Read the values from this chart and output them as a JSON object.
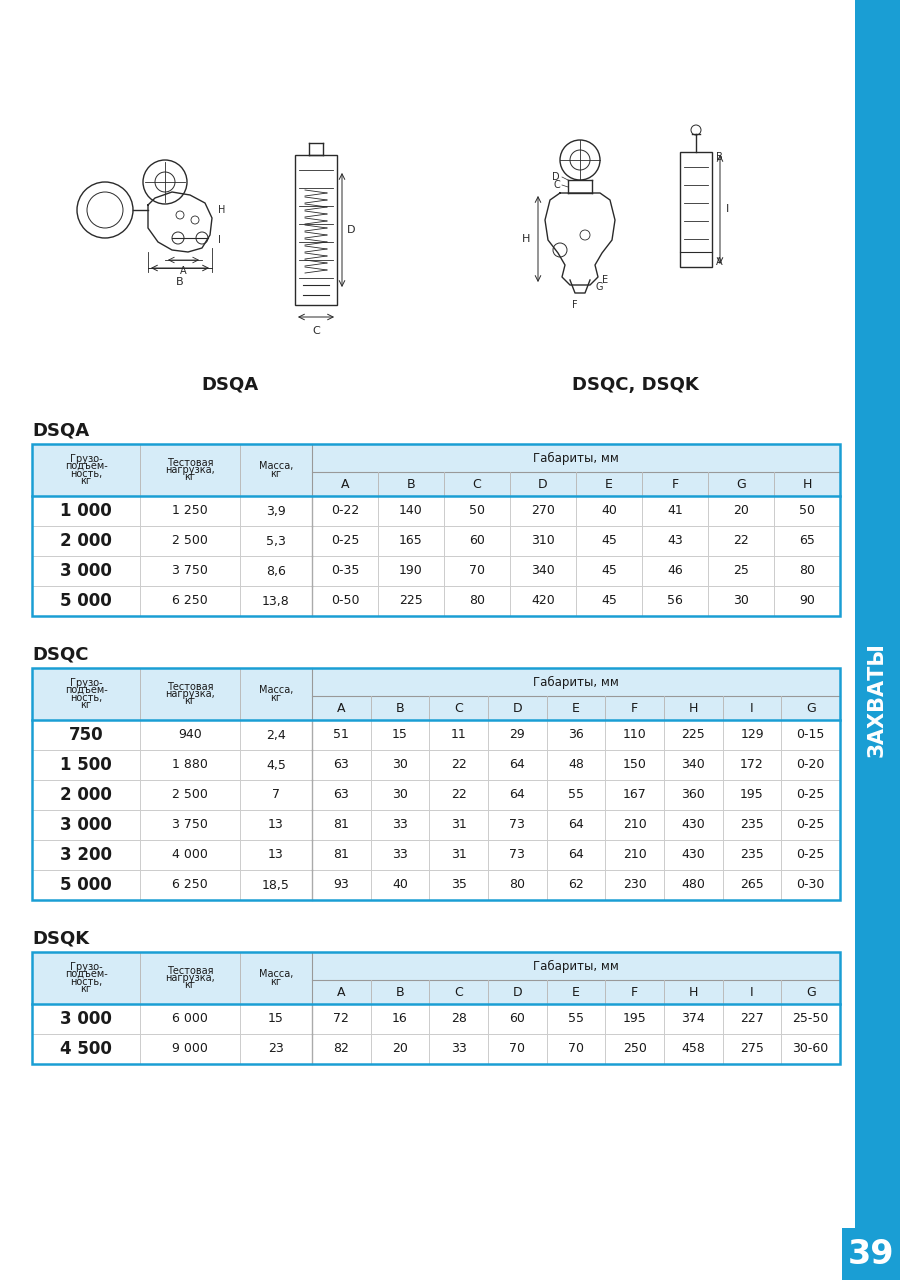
{
  "bg_color": "#f0efe8",
  "white": "#ffffff",
  "border_blue": "#1a9ed4",
  "header_bg": "#d6ecf8",
  "text_dark": "#1a1a1a",
  "sidebar_blue": "#1a9ed4",
  "page_number": "39",
  "sidebar_text": "ЗАХВАТЫ",
  "dsqa_label": "DSQA",
  "dsqc_dsqk_label": "DSQC, DSQK",
  "section_dsqa": "DSQA",
  "section_dsqc": "DSQC",
  "section_dsqk": "DSQK",
  "dsqa_sub_header": [
    "A",
    "B",
    "C",
    "D",
    "E",
    "F",
    "G",
    "H"
  ],
  "dsqa_rows": [
    [
      "1 000",
      "1 250",
      "3,9",
      "0-22",
      "140",
      "50",
      "270",
      "40",
      "41",
      "20",
      "50"
    ],
    [
      "2 000",
      "2 500",
      "5,3",
      "0-25",
      "165",
      "60",
      "310",
      "45",
      "43",
      "22",
      "65"
    ],
    [
      "3 000",
      "3 750",
      "8,6",
      "0-35",
      "190",
      "70",
      "340",
      "45",
      "46",
      "25",
      "80"
    ],
    [
      "5 000",
      "6 250",
      "13,8",
      "0-50",
      "225",
      "80",
      "420",
      "45",
      "56",
      "30",
      "90"
    ]
  ],
  "dsqc_sub_header": [
    "A",
    "B",
    "C",
    "D",
    "E",
    "F",
    "H",
    "I",
    "G"
  ],
  "dsqc_rows": [
    [
      "750",
      "940",
      "2,4",
      "51",
      "15",
      "11",
      "29",
      "36",
      "110",
      "225",
      "129",
      "0-15"
    ],
    [
      "1 500",
      "1 880",
      "4,5",
      "63",
      "30",
      "22",
      "64",
      "48",
      "150",
      "340",
      "172",
      "0-20"
    ],
    [
      "2 000",
      "2 500",
      "7",
      "63",
      "30",
      "22",
      "64",
      "55",
      "167",
      "360",
      "195",
      "0-25"
    ],
    [
      "3 000",
      "3 750",
      "13",
      "81",
      "33",
      "31",
      "73",
      "64",
      "210",
      "430",
      "235",
      "0-25"
    ],
    [
      "3 200",
      "4 000",
      "13",
      "81",
      "33",
      "31",
      "73",
      "64",
      "210",
      "430",
      "235",
      "0-25"
    ],
    [
      "5 000",
      "6 250",
      "18,5",
      "93",
      "40",
      "35",
      "80",
      "62",
      "230",
      "480",
      "265",
      "0-30"
    ]
  ],
  "dsqk_sub_header": [
    "A",
    "B",
    "C",
    "D",
    "E",
    "F",
    "H",
    "I",
    "G"
  ],
  "dsqk_rows": [
    [
      "3 000",
      "6 000",
      "15",
      "72",
      "16",
      "28",
      "60",
      "55",
      "195",
      "374",
      "227",
      "25-50"
    ],
    [
      "4 500",
      "9 000",
      "23",
      "82",
      "20",
      "33",
      "70",
      "70",
      "250",
      "458",
      "275",
      "30-60"
    ]
  ]
}
